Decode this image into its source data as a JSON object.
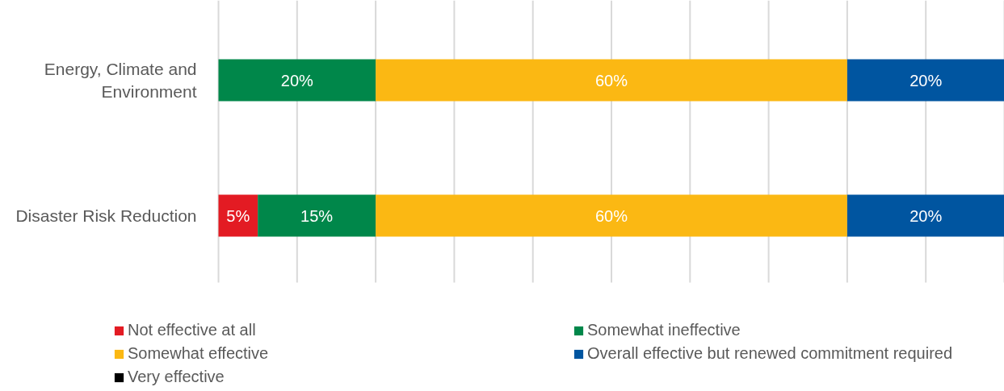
{
  "chart_data": {
    "type": "bar",
    "orientation": "horizontal",
    "stacked": true,
    "categories": [
      "Energy, Climate and Environment",
      "Disaster Risk Reduction"
    ],
    "series": [
      {
        "name": "Not effective at all",
        "color": "#e31b23",
        "values": [
          0,
          5
        ],
        "value_labels": [
          null,
          "5%"
        ]
      },
      {
        "name": "Somewhat ineffective",
        "color": "#00874a",
        "values": [
          20,
          15
        ],
        "value_labels": [
          "20%",
          "15%"
        ]
      },
      {
        "name": "Somewhat effective",
        "color": "#fbb813",
        "values": [
          60,
          60
        ],
        "value_labels": [
          "60%",
          "60%"
        ]
      },
      {
        "name": "Overall effective but renewed commitment required",
        "color": "#0055a0",
        "values": [
          20,
          20
        ],
        "value_labels": [
          "20%",
          "20%"
        ]
      },
      {
        "name": "Very effective",
        "color": "#000000",
        "values": [
          0,
          0
        ],
        "value_labels": [
          null,
          null
        ]
      }
    ],
    "xlim": [
      0,
      100
    ],
    "xticks": [
      {
        "value": 0,
        "label": null
      },
      {
        "value": 10,
        "label": null
      },
      {
        "value": 20,
        "label": null
      },
      {
        "value": 30,
        "label": null
      },
      {
        "value": 40,
        "label": null
      },
      {
        "value": 50,
        "label": null
      },
      {
        "value": 60,
        "label": null
      },
      {
        "value": 70,
        "label": null
      },
      {
        "value": 80,
        "label": null
      },
      {
        "value": 90,
        "label": null
      },
      {
        "value": 100,
        "label": null
      }
    ],
    "tick_labels": "y",
    "grid": "x",
    "legend": "bottom"
  }
}
